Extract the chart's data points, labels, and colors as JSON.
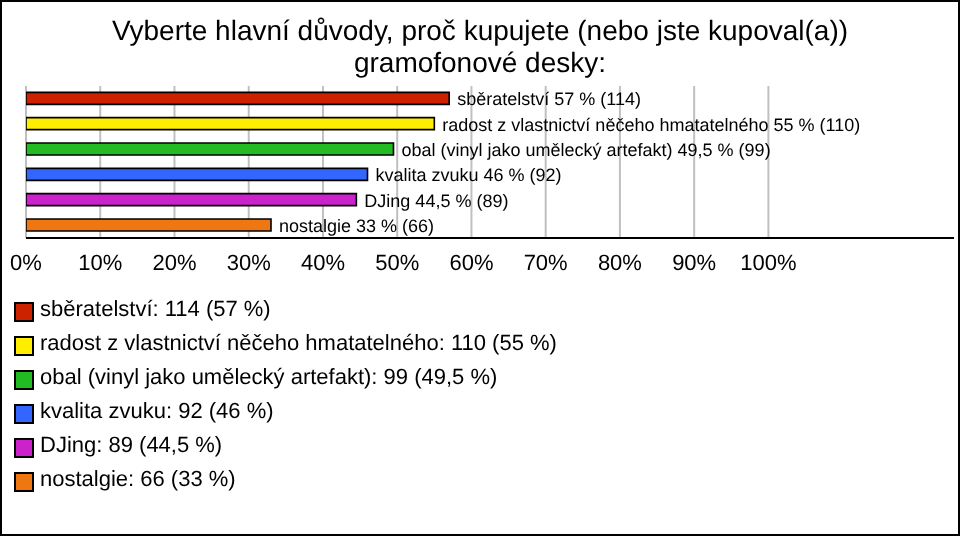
{
  "chart_data": {
    "type": "bar",
    "orientation": "horizontal",
    "title": "Vyberte hlavní důvody, proč kupujete (nebo jste kupoval(a)) gramofonové desky:",
    "categories": [
      "sběratelství",
      "radost z vlastnictví něčeho hmatatelného",
      "obal (vinyl jako umělecký artefakt)",
      "kvalita zvuku",
      "DJing",
      "nostalgie"
    ],
    "values": [
      57,
      55,
      49.5,
      46,
      44.5,
      33
    ],
    "colors": [
      "#cc2200",
      "#ffee00",
      "#22bb22",
      "#3366ff",
      "#cc22cc",
      "#ee7711"
    ],
    "value_labels": [
      "57 % (114)",
      "55 % (110)",
      "49,5 % (99)",
      "46 % (92)",
      "44,5 % (89)",
      "33 % (66)"
    ],
    "annotations": [
      "sběratelství: 114 (57 %)",
      "radost z vlastnictví něčeho hmatatelného: 110 (55 %)",
      "obal (vinyl jako umělecký artefakt): 99 (49,5 %)",
      "kvalita zvuku: 92 (46 %)",
      "DJing: 89 (44,5 %)",
      "nostalgie: 66 (33 %)"
    ],
    "xlim": [
      0,
      125
    ],
    "xticks": [
      {
        "value": 0,
        "label": "0%"
      },
      {
        "value": 10,
        "label": "10%"
      },
      {
        "value": 20,
        "label": "20%"
      },
      {
        "value": 30,
        "label": "30%"
      },
      {
        "value": 40,
        "label": "40%"
      },
      {
        "value": 50,
        "label": "50%"
      },
      {
        "value": 60,
        "label": "60%"
      },
      {
        "value": 70,
        "label": "70%"
      },
      {
        "value": 80,
        "label": "80%"
      },
      {
        "value": 90,
        "label": "90%"
      },
      {
        "value": 100,
        "label": "100%"
      }
    ],
    "tick_labels": "x",
    "grid": "x"
  }
}
